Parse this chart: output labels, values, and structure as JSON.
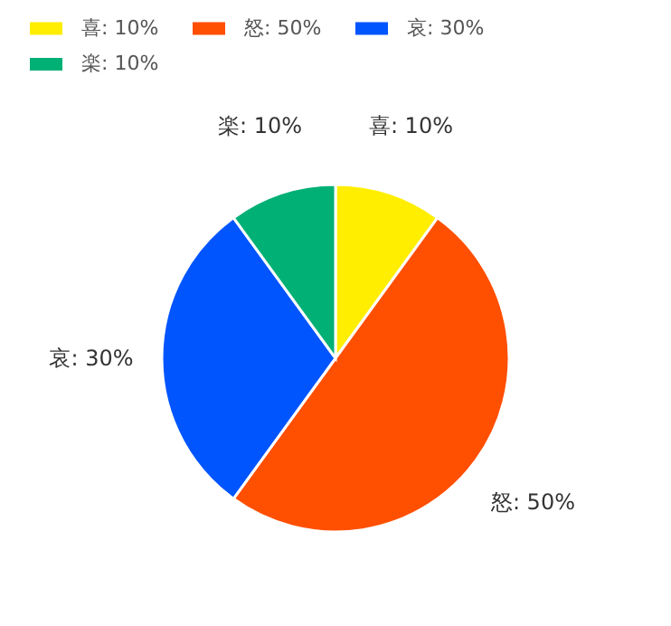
{
  "chart_data": {
    "type": "pie",
    "categories": [
      "喜",
      "怒",
      "哀",
      "楽"
    ],
    "values": [
      10,
      50,
      30,
      10
    ],
    "colors": [
      "#ffee00",
      "#ff4f00",
      "#0055ff",
      "#00b074"
    ],
    "value_labels": [
      "10%",
      "50%",
      "30%",
      "10%"
    ],
    "legend": "top left"
  }
}
